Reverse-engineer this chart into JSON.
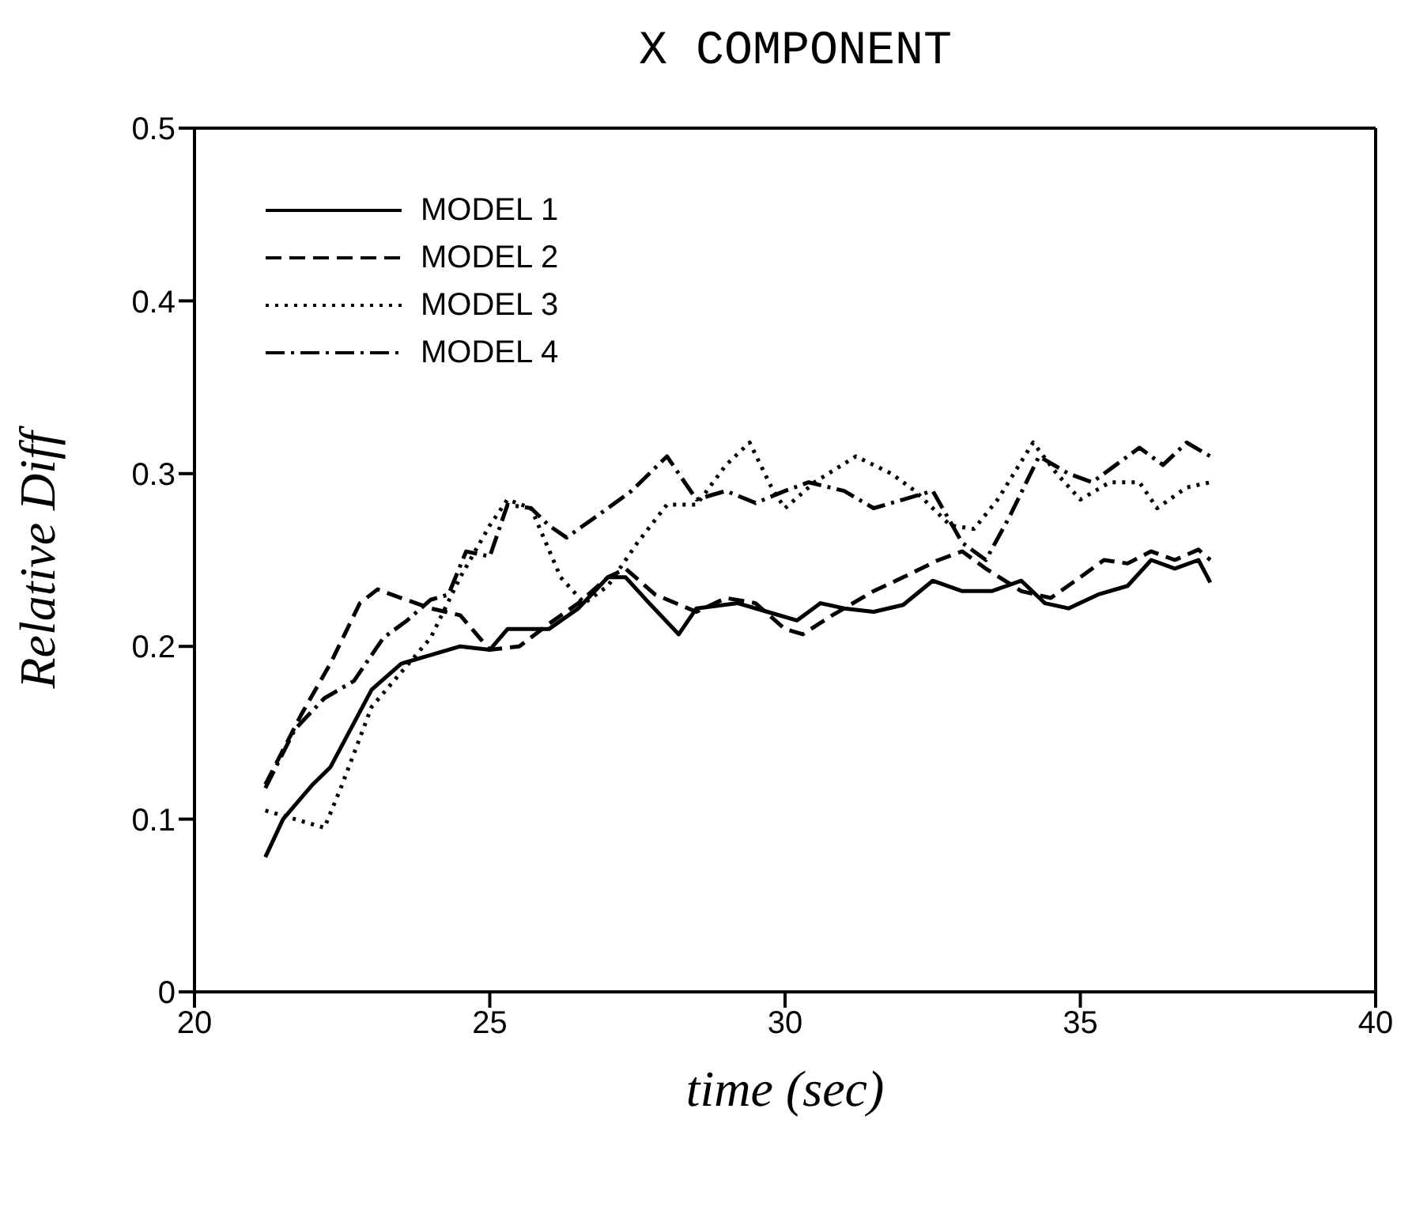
{
  "chart_data": {
    "type": "line",
    "title": "X COMPONENT",
    "xlabel": "time (sec)",
    "ylabel": "Relative Diff",
    "xlim": [
      20,
      40
    ],
    "xticks": [
      20,
      25,
      30,
      35,
      40
    ],
    "ylim": [
      0,
      0.5
    ],
    "yticks": [
      0,
      0.1,
      0.2,
      0.3,
      0.4,
      0.5
    ],
    "legend": "top left",
    "marker": "none",
    "series": [
      {
        "name": "MODEL 1",
        "color": "#000000",
        "line_style": "solid",
        "x": [
          21.2,
          21.5,
          22,
          22.3,
          23,
          23.5,
          24,
          24.5,
          25,
          25.3,
          26,
          26.5,
          27,
          27.3,
          27.7,
          28.2,
          28.5,
          29.2,
          29.7,
          30.2,
          30.6,
          31,
          31.5,
          32,
          32.5,
          33,
          33.5,
          34,
          34.4,
          34.8,
          35.3,
          35.8,
          36.2,
          36.6,
          37,
          37.2
        ],
        "values": [
          0.078,
          0.1,
          0.12,
          0.13,
          0.175,
          0.19,
          0.195,
          0.2,
          0.198,
          0.21,
          0.21,
          0.222,
          0.24,
          0.24,
          0.225,
          0.207,
          0.222,
          0.225,
          0.22,
          0.215,
          0.225,
          0.222,
          0.22,
          0.224,
          0.238,
          0.232,
          0.232,
          0.238,
          0.225,
          0.222,
          0.23,
          0.235,
          0.25,
          0.245,
          0.25,
          0.237
        ]
      },
      {
        "name": "MODEL 2",
        "color": "#000000",
        "line_style": "dashed",
        "x": [
          21.2,
          21.8,
          22.3,
          22.8,
          23.1,
          23.5,
          24,
          24.5,
          25,
          25.5,
          26,
          26.5,
          27,
          27.3,
          27.8,
          28.5,
          29,
          29.5,
          30,
          30.3,
          30.8,
          31.5,
          32,
          32.6,
          33,
          33.4,
          34,
          34.5,
          35,
          35.4,
          35.8,
          36.2,
          36.6,
          37,
          37.2
        ],
        "values": [
          0.12,
          0.16,
          0.19,
          0.225,
          0.233,
          0.228,
          0.222,
          0.218,
          0.198,
          0.2,
          0.213,
          0.225,
          0.24,
          0.245,
          0.23,
          0.22,
          0.228,
          0.225,
          0.21,
          0.207,
          0.218,
          0.232,
          0.24,
          0.25,
          0.255,
          0.245,
          0.232,
          0.228,
          0.24,
          0.25,
          0.248,
          0.255,
          0.25,
          0.256,
          0.25
        ]
      },
      {
        "name": "MODEL 3",
        "color": "#000000",
        "line_style": "dotted",
        "x": [
          21.2,
          21.7,
          22.2,
          22.5,
          23,
          23.5,
          24,
          24.5,
          25,
          25.3,
          25.7,
          26.2,
          26.6,
          27,
          27.5,
          28,
          28.5,
          29,
          29.4,
          29.8,
          30,
          30.5,
          31.2,
          31.8,
          32.2,
          32.8,
          33.2,
          33.6,
          34.2,
          34.6,
          35,
          35.5,
          36,
          36.3,
          36.8,
          37.2
        ],
        "values": [
          0.105,
          0.1,
          0.095,
          0.12,
          0.165,
          0.185,
          0.205,
          0.24,
          0.27,
          0.285,
          0.28,
          0.24,
          0.225,
          0.235,
          0.26,
          0.282,
          0.282,
          0.305,
          0.318,
          0.29,
          0.28,
          0.295,
          0.31,
          0.3,
          0.29,
          0.27,
          0.268,
          0.285,
          0.318,
          0.3,
          0.285,
          0.295,
          0.295,
          0.28,
          0.292,
          0.295
        ]
      },
      {
        "name": "MODEL 4",
        "color": "#000000",
        "line_style": "dashdot",
        "x": [
          21.2,
          21.7,
          22.2,
          22.7,
          23.2,
          23.6,
          24,
          24.3,
          24.6,
          25,
          25.3,
          25.7,
          26,
          26.3,
          27,
          27.4,
          28,
          28.5,
          29,
          29.5,
          30,
          30.4,
          31,
          31.5,
          32,
          32.5,
          33,
          33.4,
          33.8,
          34.3,
          34.8,
          35.2,
          35.6,
          36,
          36.4,
          36.8,
          37.2
        ],
        "values": [
          0.118,
          0.152,
          0.17,
          0.18,
          0.205,
          0.215,
          0.227,
          0.23,
          0.255,
          0.252,
          0.282,
          0.28,
          0.27,
          0.263,
          0.28,
          0.29,
          0.31,
          0.285,
          0.29,
          0.283,
          0.29,
          0.295,
          0.29,
          0.28,
          0.285,
          0.29,
          0.26,
          0.25,
          0.275,
          0.31,
          0.3,
          0.295,
          0.305,
          0.315,
          0.305,
          0.318,
          0.31
        ]
      }
    ]
  }
}
